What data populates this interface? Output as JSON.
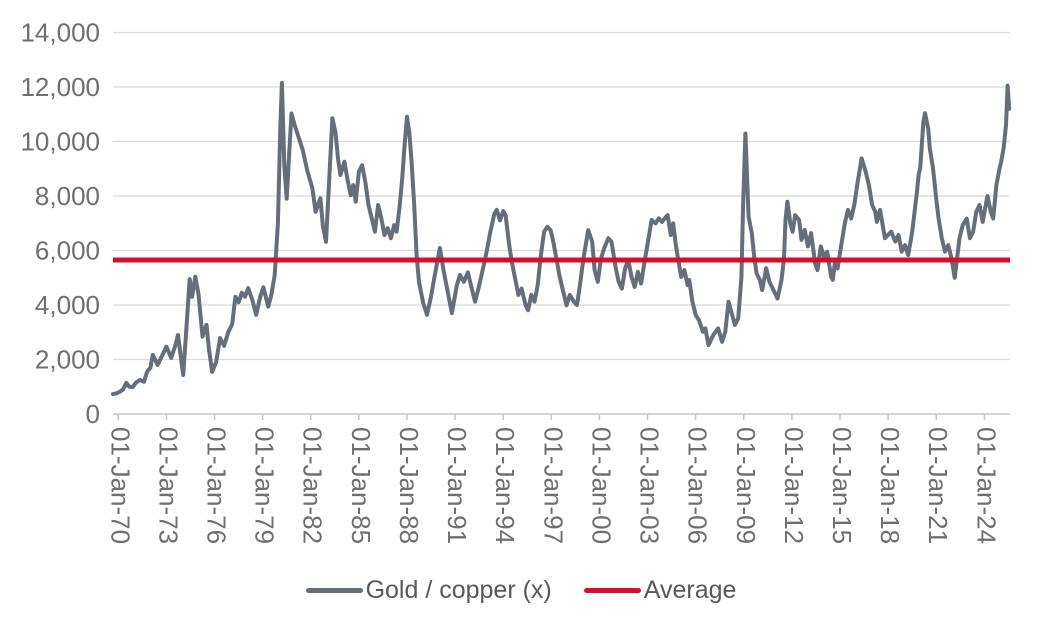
{
  "chart_data": {
    "type": "line",
    "title": "",
    "xlabel": "",
    "ylabel": "",
    "grid": true,
    "legend_position": "bottom",
    "xlim": [
      1969.67,
      2025.6
    ],
    "ylim": [
      0,
      14000
    ],
    "y_ticks": {
      "values": [
        0,
        2000,
        4000,
        6000,
        8000,
        10000,
        12000,
        14000
      ],
      "labels": [
        "0",
        "2,000",
        "4,000",
        "6,000",
        "8,000",
        "10,000",
        "12,000",
        "14,000"
      ]
    },
    "x_ticks": {
      "years": [
        1970,
        1973,
        1976,
        1979,
        1982,
        1985,
        1988,
        1991,
        1994,
        1997,
        2000,
        2003,
        2006,
        2009,
        2012,
        2015,
        2018,
        2021,
        2024
      ],
      "labels": [
        "01-Jan-70",
        "01-Jan-73",
        "01-Jan-76",
        "01-Jan-79",
        "01-Jan-82",
        "01-Jan-85",
        "01-Jan-88",
        "01-Jan-91",
        "01-Jan-94",
        "01-Jan-97",
        "01-Jan-00",
        "01-Jan-03",
        "01-Jan-06",
        "01-Jan-09",
        "01-Jan-12",
        "01-Jan-15",
        "01-Jan-18",
        "01-Jan-21",
        "01-Jan-24"
      ]
    },
    "average": {
      "name": "Average",
      "value": 5650,
      "color": "#D30F2F",
      "width": 5
    },
    "series": [
      {
        "name": "Gold / copper (x)",
        "color": "#656E79",
        "width": 4,
        "points": [
          [
            1969.67,
            730
          ],
          [
            1969.9,
            760
          ],
          [
            1970.1,
            820
          ],
          [
            1970.3,
            900
          ],
          [
            1970.5,
            1140
          ],
          [
            1970.7,
            1000
          ],
          [
            1970.9,
            990
          ],
          [
            1971.1,
            1150
          ],
          [
            1971.35,
            1250
          ],
          [
            1971.6,
            1180
          ],
          [
            1971.8,
            1560
          ],
          [
            1972.0,
            1700
          ],
          [
            1972.15,
            2170
          ],
          [
            1972.45,
            1800
          ],
          [
            1972.7,
            2100
          ],
          [
            1973.0,
            2470
          ],
          [
            1973.3,
            2060
          ],
          [
            1973.55,
            2500
          ],
          [
            1973.72,
            2900
          ],
          [
            1973.9,
            2100
          ],
          [
            1974.05,
            1430
          ],
          [
            1974.25,
            3200
          ],
          [
            1974.45,
            4950
          ],
          [
            1974.6,
            4300
          ],
          [
            1974.8,
            5040
          ],
          [
            1975.0,
            4400
          ],
          [
            1975.25,
            2840
          ],
          [
            1975.5,
            3270
          ],
          [
            1975.65,
            2400
          ],
          [
            1975.85,
            1550
          ],
          [
            1976.1,
            1900
          ],
          [
            1976.35,
            2790
          ],
          [
            1976.6,
            2500
          ],
          [
            1976.85,
            3000
          ],
          [
            1977.1,
            3300
          ],
          [
            1977.3,
            4300
          ],
          [
            1977.5,
            4100
          ],
          [
            1977.7,
            4450
          ],
          [
            1977.9,
            4300
          ],
          [
            1978.1,
            4620
          ],
          [
            1978.35,
            4200
          ],
          [
            1978.6,
            3640
          ],
          [
            1978.85,
            4300
          ],
          [
            1979.05,
            4650
          ],
          [
            1979.35,
            3940
          ],
          [
            1979.55,
            4400
          ],
          [
            1979.75,
            5100
          ],
          [
            1979.95,
            7000
          ],
          [
            1980.1,
            10500
          ],
          [
            1980.2,
            12150
          ],
          [
            1980.35,
            9130
          ],
          [
            1980.5,
            7900
          ],
          [
            1980.65,
            9500
          ],
          [
            1980.8,
            11030
          ],
          [
            1981.0,
            10600
          ],
          [
            1981.2,
            10240
          ],
          [
            1981.5,
            9690
          ],
          [
            1981.8,
            8900
          ],
          [
            1982.1,
            8280
          ],
          [
            1982.3,
            7420
          ],
          [
            1982.6,
            7920
          ],
          [
            1982.75,
            6930
          ],
          [
            1982.95,
            6320
          ],
          [
            1983.15,
            8600
          ],
          [
            1983.35,
            10850
          ],
          [
            1983.55,
            10300
          ],
          [
            1983.7,
            9380
          ],
          [
            1983.85,
            8770
          ],
          [
            1984.1,
            9260
          ],
          [
            1984.3,
            8580
          ],
          [
            1984.5,
            8030
          ],
          [
            1984.65,
            8400
          ],
          [
            1984.8,
            7790
          ],
          [
            1985.0,
            8890
          ],
          [
            1985.2,
            9130
          ],
          [
            1985.4,
            8520
          ],
          [
            1985.6,
            7670
          ],
          [
            1985.8,
            7180
          ],
          [
            1986.0,
            6690
          ],
          [
            1986.2,
            7670
          ],
          [
            1986.4,
            7180
          ],
          [
            1986.6,
            6570
          ],
          [
            1986.8,
            6820
          ],
          [
            1987.0,
            6450
          ],
          [
            1987.2,
            6930
          ],
          [
            1987.35,
            6690
          ],
          [
            1987.55,
            7670
          ],
          [
            1987.7,
            8640
          ],
          [
            1987.85,
            9870
          ],
          [
            1988.0,
            10910
          ],
          [
            1988.15,
            10300
          ],
          [
            1988.3,
            9130
          ],
          [
            1988.45,
            7670
          ],
          [
            1988.6,
            5830
          ],
          [
            1988.75,
            4850
          ],
          [
            1989.0,
            4100
          ],
          [
            1989.25,
            3640
          ],
          [
            1989.5,
            4300
          ],
          [
            1989.7,
            4980
          ],
          [
            1990.05,
            6090
          ],
          [
            1990.3,
            5200
          ],
          [
            1990.5,
            4600
          ],
          [
            1990.8,
            3700
          ],
          [
            1991.1,
            4700
          ],
          [
            1991.3,
            5100
          ],
          [
            1991.55,
            4850
          ],
          [
            1991.8,
            5200
          ],
          [
            1992.0,
            4700
          ],
          [
            1992.25,
            4120
          ],
          [
            1992.5,
            4700
          ],
          [
            1992.8,
            5500
          ],
          [
            1993.0,
            6060
          ],
          [
            1993.2,
            6700
          ],
          [
            1993.45,
            7350
          ],
          [
            1993.6,
            7490
          ],
          [
            1993.8,
            7100
          ],
          [
            1994.0,
            7450
          ],
          [
            1994.15,
            7300
          ],
          [
            1994.35,
            6320
          ],
          [
            1994.5,
            5710
          ],
          [
            1994.7,
            5100
          ],
          [
            1994.95,
            4370
          ],
          [
            1995.15,
            4600
          ],
          [
            1995.4,
            3990
          ],
          [
            1995.55,
            3810
          ],
          [
            1995.75,
            4370
          ],
          [
            1995.95,
            4120
          ],
          [
            1996.15,
            4730
          ],
          [
            1996.35,
            5830
          ],
          [
            1996.55,
            6690
          ],
          [
            1996.75,
            6870
          ],
          [
            1996.95,
            6750
          ],
          [
            1997.1,
            6390
          ],
          [
            1997.3,
            5770
          ],
          [
            1997.5,
            5100
          ],
          [
            1997.7,
            4600
          ],
          [
            1997.95,
            3990
          ],
          [
            1998.15,
            4370
          ],
          [
            1998.4,
            4120
          ],
          [
            1998.6,
            4000
          ],
          [
            1998.8,
            4800
          ],
          [
            1999.0,
            5700
          ],
          [
            1999.3,
            6750
          ],
          [
            1999.55,
            6320
          ],
          [
            1999.7,
            5280
          ],
          [
            1999.9,
            4850
          ],
          [
            2000.1,
            5710
          ],
          [
            2000.3,
            6080
          ],
          [
            2000.55,
            6450
          ],
          [
            2000.75,
            6320
          ],
          [
            2001.0,
            5400
          ],
          [
            2001.2,
            4850
          ],
          [
            2001.4,
            4600
          ],
          [
            2001.6,
            5340
          ],
          [
            2001.8,
            5650
          ],
          [
            2002.0,
            5030
          ],
          [
            2002.2,
            4660
          ],
          [
            2002.4,
            5220
          ],
          [
            2002.6,
            4790
          ],
          [
            2002.85,
            5710
          ],
          [
            2003.05,
            6390
          ],
          [
            2003.25,
            7120
          ],
          [
            2003.5,
            7000
          ],
          [
            2003.7,
            7180
          ],
          [
            2003.9,
            7050
          ],
          [
            2004.1,
            7200
          ],
          [
            2004.25,
            7300
          ],
          [
            2004.45,
            6570
          ],
          [
            2004.6,
            7000
          ],
          [
            2004.75,
            6260
          ],
          [
            2004.95,
            5530
          ],
          [
            2005.1,
            5030
          ],
          [
            2005.3,
            5280
          ],
          [
            2005.5,
            4730
          ],
          [
            2005.6,
            4920
          ],
          [
            2005.8,
            4120
          ],
          [
            2006.0,
            3630
          ],
          [
            2006.2,
            3450
          ],
          [
            2006.45,
            3020
          ],
          [
            2006.6,
            3140
          ],
          [
            2006.8,
            2530
          ],
          [
            2007.1,
            2900
          ],
          [
            2007.4,
            3140
          ],
          [
            2007.65,
            2650
          ],
          [
            2007.85,
            3020
          ],
          [
            2008.05,
            4120
          ],
          [
            2008.25,
            3700
          ],
          [
            2008.45,
            3270
          ],
          [
            2008.65,
            3510
          ],
          [
            2008.85,
            5000
          ],
          [
            2008.95,
            7500
          ],
          [
            2009.1,
            10290
          ],
          [
            2009.3,
            7240
          ],
          [
            2009.5,
            6640
          ],
          [
            2009.65,
            5770
          ],
          [
            2009.8,
            5160
          ],
          [
            2010.0,
            4920
          ],
          [
            2010.15,
            4550
          ],
          [
            2010.4,
            5350
          ],
          [
            2010.6,
            4850
          ],
          [
            2010.85,
            4550
          ],
          [
            2011.1,
            4240
          ],
          [
            2011.35,
            4920
          ],
          [
            2011.5,
            5650
          ],
          [
            2011.6,
            7120
          ],
          [
            2011.72,
            7790
          ],
          [
            2011.9,
            7000
          ],
          [
            2012.05,
            6690
          ],
          [
            2012.2,
            7300
          ],
          [
            2012.45,
            7120
          ],
          [
            2012.6,
            6390
          ],
          [
            2012.8,
            6760
          ],
          [
            2013.0,
            6150
          ],
          [
            2013.2,
            6640
          ],
          [
            2013.45,
            5530
          ],
          [
            2013.6,
            5280
          ],
          [
            2013.8,
            6150
          ],
          [
            2014.0,
            5770
          ],
          [
            2014.2,
            5950
          ],
          [
            2014.45,
            5030
          ],
          [
            2014.55,
            4920
          ],
          [
            2014.7,
            5650
          ],
          [
            2014.85,
            5340
          ],
          [
            2015.1,
            6270
          ],
          [
            2015.3,
            7000
          ],
          [
            2015.5,
            7490
          ],
          [
            2015.7,
            7170
          ],
          [
            2015.9,
            7700
          ],
          [
            2016.1,
            8500
          ],
          [
            2016.35,
            9380
          ],
          [
            2016.6,
            8890
          ],
          [
            2016.8,
            8400
          ],
          [
            2017.0,
            7670
          ],
          [
            2017.2,
            7420
          ],
          [
            2017.3,
            7050
          ],
          [
            2017.5,
            7490
          ],
          [
            2017.8,
            6450
          ],
          [
            2018.2,
            6690
          ],
          [
            2018.45,
            6330
          ],
          [
            2018.65,
            6570
          ],
          [
            2018.85,
            5960
          ],
          [
            2019.05,
            6200
          ],
          [
            2019.25,
            5830
          ],
          [
            2019.5,
            6690
          ],
          [
            2019.7,
            7670
          ],
          [
            2019.8,
            8160
          ],
          [
            2019.9,
            8770
          ],
          [
            2020.0,
            9020
          ],
          [
            2020.2,
            10730
          ],
          [
            2020.3,
            11040
          ],
          [
            2020.5,
            10480
          ],
          [
            2020.6,
            9750
          ],
          [
            2020.8,
            9020
          ],
          [
            2021.0,
            7900
          ],
          [
            2021.15,
            7170
          ],
          [
            2021.35,
            6450
          ],
          [
            2021.55,
            5960
          ],
          [
            2021.75,
            6200
          ],
          [
            2021.95,
            5710
          ],
          [
            2022.15,
            5000
          ],
          [
            2022.45,
            6450
          ],
          [
            2022.65,
            6930
          ],
          [
            2022.9,
            7170
          ],
          [
            2023.1,
            6450
          ],
          [
            2023.3,
            6690
          ],
          [
            2023.5,
            7420
          ],
          [
            2023.7,
            7670
          ],
          [
            2023.9,
            7050
          ],
          [
            2024.1,
            7700
          ],
          [
            2024.2,
            8000
          ],
          [
            2024.4,
            7420
          ],
          [
            2024.55,
            7170
          ],
          [
            2024.75,
            8400
          ],
          [
            2024.95,
            9020
          ],
          [
            2025.05,
            9260
          ],
          [
            2025.2,
            9750
          ],
          [
            2025.35,
            10600
          ],
          [
            2025.45,
            12050
          ],
          [
            2025.55,
            11200
          ]
        ]
      }
    ]
  },
  "legend": {
    "items": [
      {
        "label": "Gold / copper (x)",
        "color": "#656E79"
      },
      {
        "label": "Average",
        "color": "#D30F2F"
      }
    ]
  },
  "colors": {
    "background": "#FFFFFF",
    "series": "#656E79",
    "average": "#D30F2F",
    "gridline": "#DBDBDB",
    "axis": "#C6C6C6",
    "tick_label": "#6F6F6F",
    "legend_text": "#595959"
  }
}
